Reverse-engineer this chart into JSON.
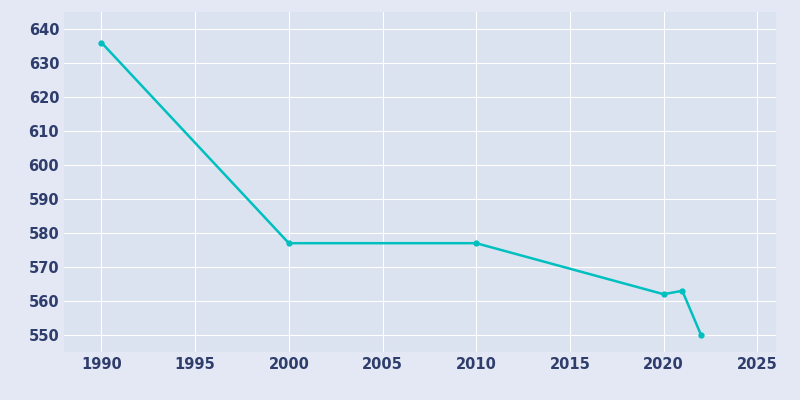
{
  "years": [
    1990,
    2000,
    2010,
    2020,
    2021,
    2022
  ],
  "population": [
    636,
    577,
    577,
    562,
    563,
    550
  ],
  "line_color": "#00BFBF",
  "bg_color": "#E3E8F4",
  "plot_bg_color": "#DCE3F0",
  "grid_color": "#FFFFFF",
  "text_color": "#2E3D6B",
  "xlim": [
    1988,
    2026
  ],
  "ylim": [
    545,
    645
  ],
  "yticks": [
    550,
    560,
    570,
    580,
    590,
    600,
    610,
    620,
    630,
    640
  ],
  "xticks": [
    1990,
    1995,
    2000,
    2005,
    2010,
    2015,
    2020,
    2025
  ],
  "line_width": 1.8,
  "marker": "o",
  "marker_size": 3.5,
  "figsize": [
    8.0,
    4.0
  ],
  "dpi": 100
}
